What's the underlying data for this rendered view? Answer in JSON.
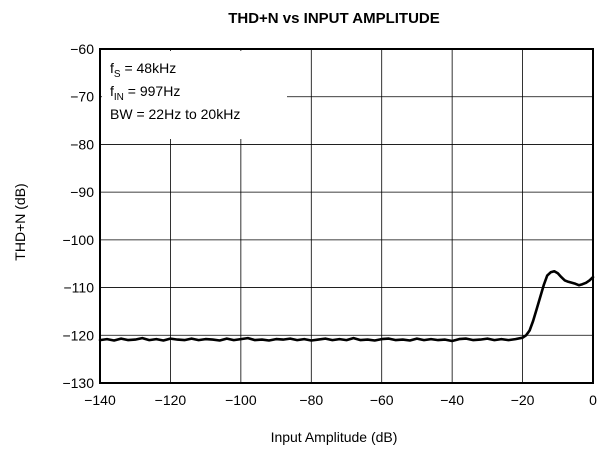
{
  "chart_data": {
    "type": "line",
    "title": "THD+N vs INPUT AMPLITUDE",
    "xlabel": "Input Amplitude (dB)",
    "ylabel": "THD+N (dB)",
    "xlim": [
      -140,
      0
    ],
    "ylim": [
      -130,
      -60
    ],
    "xticks": [
      -140,
      -120,
      -100,
      -80,
      -60,
      -40,
      -20,
      0
    ],
    "yticks": [
      -60,
      -70,
      -80,
      -90,
      -100,
      -110,
      -120,
      -130
    ],
    "xtick_labels": [
      "−140",
      "−120",
      "−100",
      "−80",
      "−60",
      "−40",
      "−20",
      "0"
    ],
    "ytick_labels": [
      "−60",
      "−70",
      "−80",
      "−90",
      "−100",
      "−110",
      "−120",
      "−130"
    ],
    "grid": true,
    "annotations": [
      {
        "main": "f",
        "sub": "S",
        "rest": " = 48kHz"
      },
      {
        "main": "f",
        "sub": "IN",
        "rest": " = 997Hz"
      },
      {
        "main": "BW = 22Hz to 20kHz",
        "sub": "",
        "rest": ""
      }
    ],
    "series": [
      {
        "x": [
          -140,
          -138,
          -136,
          -134,
          -132,
          -130,
          -128,
          -126,
          -124,
          -122,
          -120,
          -118,
          -116,
          -114,
          -112,
          -110,
          -108,
          -106,
          -104,
          -102,
          -100,
          -98,
          -96,
          -94,
          -92,
          -90,
          -88,
          -86,
          -84,
          -82,
          -80,
          -78,
          -76,
          -74,
          -72,
          -70,
          -68,
          -66,
          -64,
          -62,
          -60,
          -58,
          -56,
          -54,
          -52,
          -50,
          -48,
          -46,
          -44,
          -42,
          -40,
          -38,
          -36,
          -34,
          -32,
          -30,
          -28,
          -26,
          -24,
          -22,
          -20,
          -19,
          -18,
          -17,
          -16,
          -15,
          -14,
          -13,
          -12,
          -11,
          -10,
          -9,
          -8,
          -7,
          -6,
          -5,
          -4,
          -3,
          -2,
          -1,
          0
        ],
        "y": [
          -121.0,
          -120.8,
          -121.1,
          -120.7,
          -121.0,
          -120.9,
          -120.6,
          -121.0,
          -120.8,
          -121.1,
          -120.7,
          -120.9,
          -121.0,
          -120.7,
          -121.0,
          -120.8,
          -120.9,
          -121.1,
          -120.7,
          -121.0,
          -120.8,
          -120.6,
          -121.0,
          -120.9,
          -121.1,
          -120.8,
          -120.9,
          -120.7,
          -121.0,
          -120.8,
          -121.1,
          -120.9,
          -120.7,
          -121.0,
          -120.8,
          -121.0,
          -120.6,
          -121.0,
          -120.9,
          -121.1,
          -120.8,
          -120.7,
          -121.0,
          -120.9,
          -121.1,
          -120.7,
          -121.0,
          -120.8,
          -121.0,
          -120.9,
          -121.2,
          -120.8,
          -120.7,
          -121.0,
          -120.9,
          -120.7,
          -121.0,
          -120.8,
          -121.0,
          -120.8,
          -120.5,
          -120.0,
          -119.0,
          -117.0,
          -114.5,
          -112.0,
          -109.5,
          -107.5,
          -106.8,
          -106.6,
          -107.0,
          -107.8,
          -108.5,
          -108.8,
          -109.0,
          -109.2,
          -109.5,
          -109.3,
          -109.0,
          -108.5,
          -107.8
        ]
      }
    ]
  }
}
